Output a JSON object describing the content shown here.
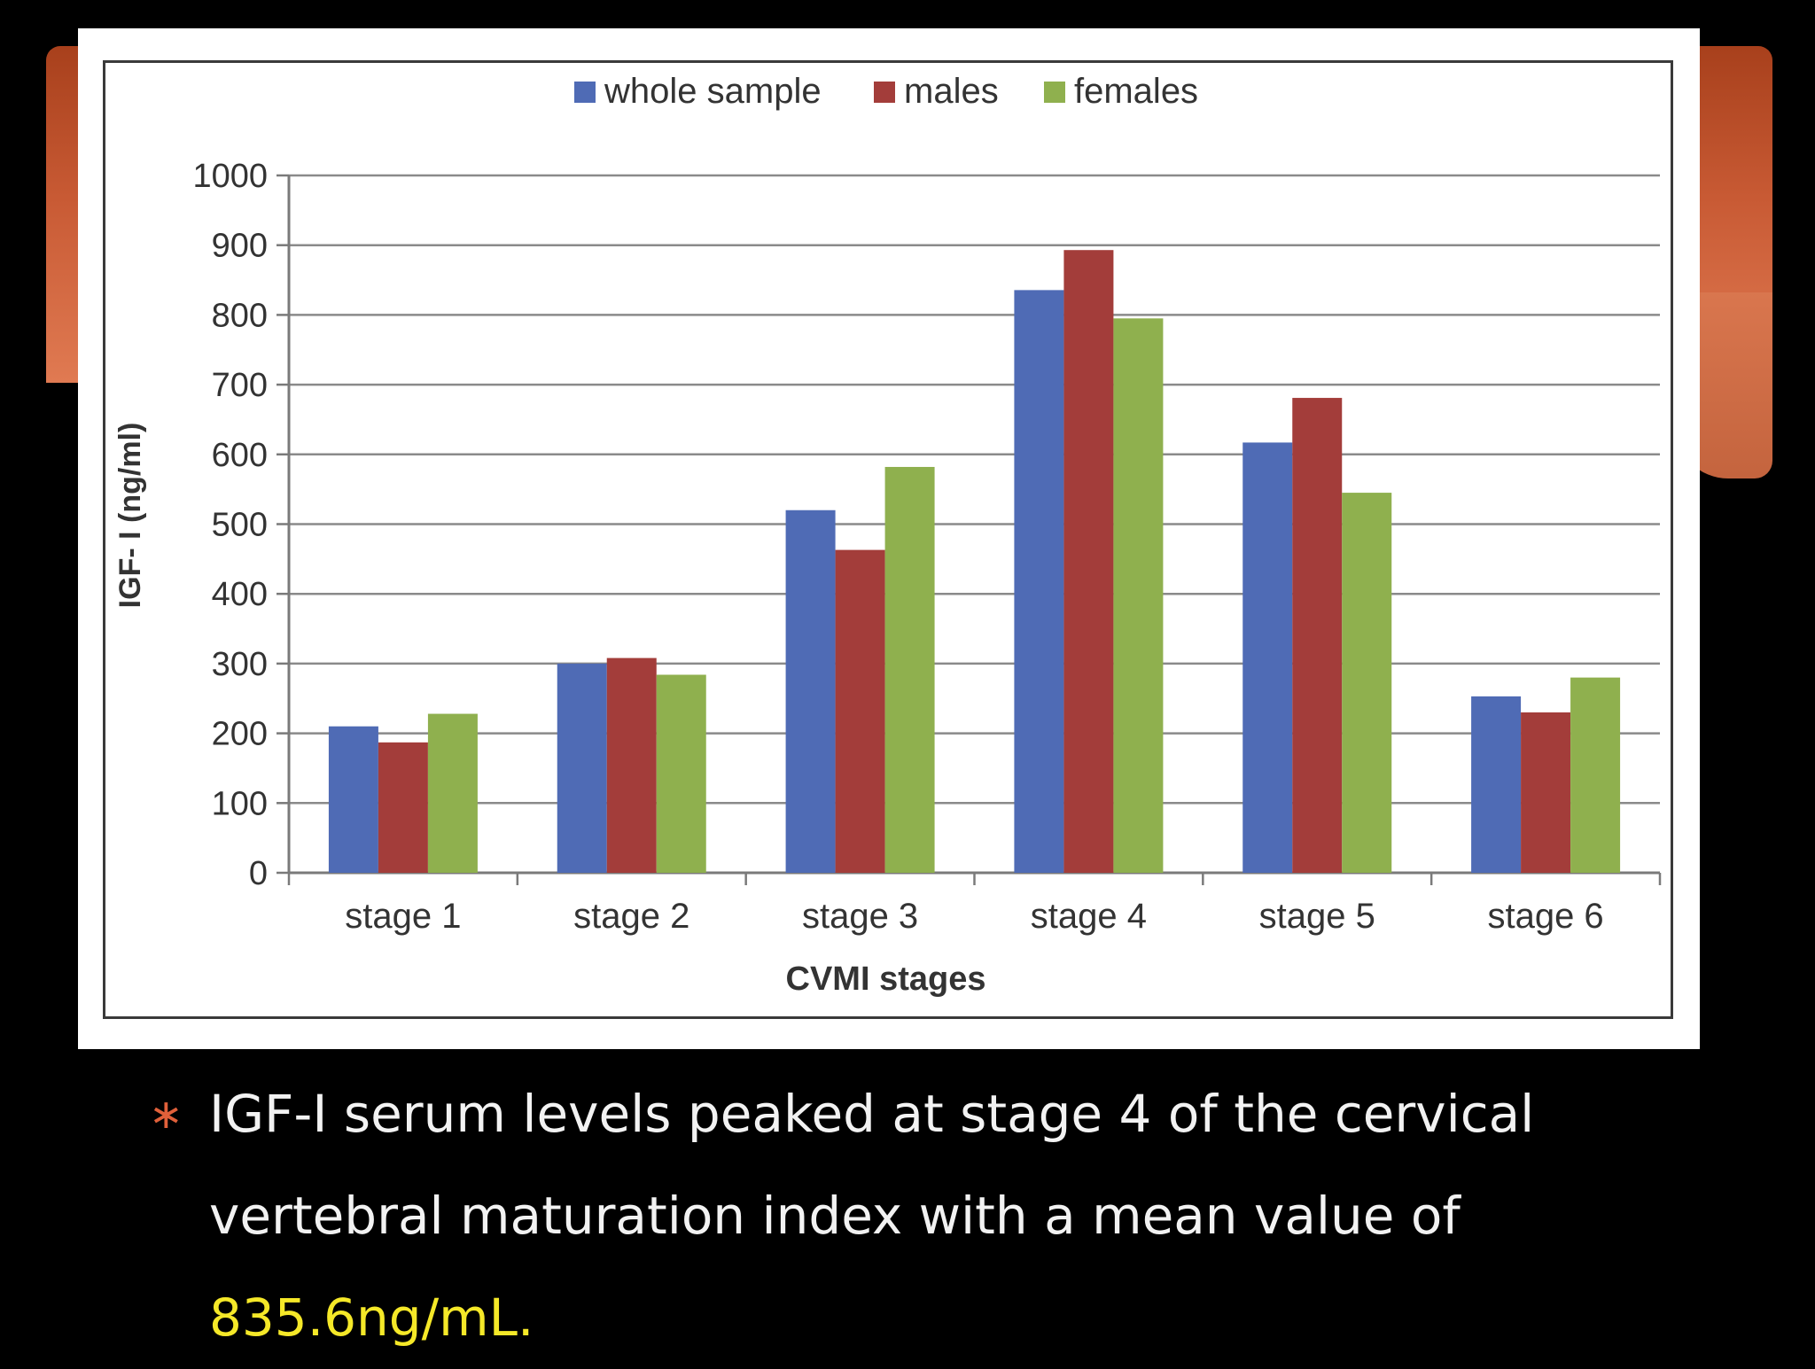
{
  "slide": {
    "bullet_symbol": "∗",
    "bullet_line1": "IGF-I serum levels peaked at stage 4 of the cervical",
    "bullet_line2": "vertebral maturation index with a mean value of",
    "bullet_highlight": "835.6ng/mL.",
    "highlight_color": "#f5e828",
    "accent_color": "#c85a34"
  },
  "chart_data": {
    "type": "bar",
    "title": "",
    "xlabel": "CVMI stages",
    "ylabel": "IGF- I (ng/ml)",
    "ylim": [
      0,
      1000
    ],
    "yticks": [
      0,
      100,
      200,
      300,
      400,
      500,
      600,
      700,
      800,
      900,
      1000
    ],
    "grid": true,
    "legend_position": "top-center",
    "categories": [
      "stage 1",
      "stage 2",
      "stage 3",
      "stage 4",
      "stage 5",
      "stage 6"
    ],
    "series": [
      {
        "name": "whole sample",
        "color": "#4f6bb5",
        "values": [
          210,
          300,
          520,
          835.6,
          617,
          253
        ]
      },
      {
        "name": "males",
        "color": "#a33d3a",
        "values": [
          187,
          308,
          463,
          893,
          681,
          230
        ]
      },
      {
        "name": "females",
        "color": "#8fb04e",
        "values": [
          228,
          284,
          582,
          795,
          545,
          280
        ]
      }
    ]
  }
}
